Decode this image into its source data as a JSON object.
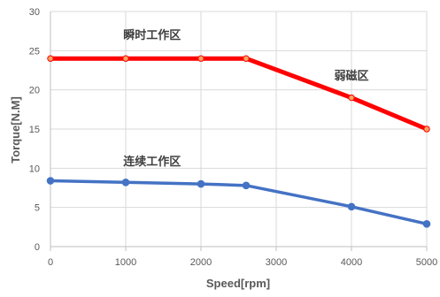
{
  "chart_data": {
    "type": "line",
    "title": "",
    "xlabel": "Speed[rpm]",
    "ylabel": "Torque[N.M]",
    "xlim": [
      0,
      5000
    ],
    "ylim": [
      0,
      30
    ],
    "xticks": [
      0,
      1000,
      2000,
      3000,
      4000,
      5000
    ],
    "yticks": [
      0,
      5,
      10,
      15,
      20,
      25,
      30
    ],
    "grid": true,
    "legend": "none",
    "series": [
      {
        "color": "#ff0000",
        "marker_fill": "#f4a460",
        "line_width": "thick",
        "points": [
          {
            "x": 0,
            "y": 24
          },
          {
            "x": 1000,
            "y": 24
          },
          {
            "x": 2000,
            "y": 24
          },
          {
            "x": 2600,
            "y": 24
          },
          {
            "x": 4000,
            "y": 19
          },
          {
            "x": 5000,
            "y": 15
          }
        ]
      },
      {
        "color": "#4472c4",
        "marker_fill": "#4472c4",
        "line_width": "normal",
        "points": [
          {
            "x": 0,
            "y": 8.4
          },
          {
            "x": 1000,
            "y": 8.2
          },
          {
            "x": 2000,
            "y": 8.0
          },
          {
            "x": 2600,
            "y": 7.8
          },
          {
            "x": 4000,
            "y": 5.1
          },
          {
            "x": 5000,
            "y": 2.9
          }
        ]
      }
    ],
    "annotations": [
      {
        "text": "瞬时工作区",
        "x": 1350,
        "y": 26.5
      },
      {
        "text": "弱磁区",
        "x": 4000,
        "y": 21.3
      },
      {
        "text": "连续工作区",
        "x": 1350,
        "y": 10.4
      }
    ]
  }
}
